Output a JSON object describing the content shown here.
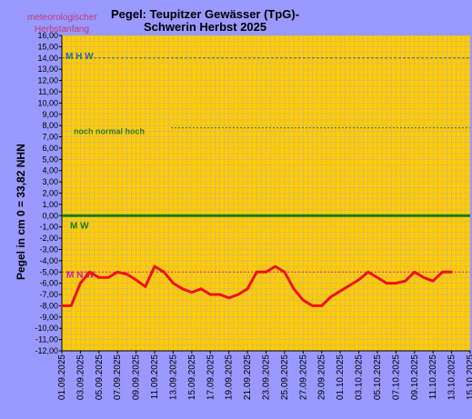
{
  "chart_data": {
    "type": "line",
    "title": [
      "Pegel: Teupitzer Gewässer (TpG)-",
      "Schwerin  Herbst 2025"
    ],
    "season_label": [
      "meteorologischer",
      "Herbstanfang"
    ],
    "ylabel": "Pegel in cm     0 = 33,82 NHN",
    "ylim": [
      -12,
      16
    ],
    "yticks": [
      "-12,00",
      "-11,00",
      "-10,00",
      "-9,00",
      "-8,00",
      "-7,00",
      "-6,00",
      "-5,00",
      "-4,00",
      "-3,00",
      "-2,00",
      "-1,00",
      "0,00",
      "1,00",
      "2,00",
      "3,00",
      "4,00",
      "5,00",
      "6,00",
      "7,00",
      "8,00",
      "9,00",
      "10,00",
      "11,00",
      "12,00",
      "13,00",
      "14,00",
      "15,00",
      "16,00"
    ],
    "xlim": [
      "01.09.2025",
      "15.10.2025"
    ],
    "xticks": [
      "01.09.2025",
      "03.09.2025",
      "05.09.2025",
      "07.09.2025",
      "09.09.2025",
      "11.09.2025",
      "13.09.2025",
      "15.09.2025",
      "17.09.2025",
      "19.09.2025",
      "21.09.2025",
      "23.09.2025",
      "25.09.2025",
      "27.09.2025",
      "29.09.2025",
      "01.10.2025",
      "03.10.2025",
      "05.10.2025",
      "07.10.2025",
      "09.10.2025",
      "11.10.2025",
      "13.10.2025",
      "15.10.2025"
    ],
    "grid": true,
    "reference_lines": [
      {
        "label": "M H W",
        "value": 14,
        "color": "#336699"
      },
      {
        "label": "noch  normal  hoch",
        "value": 7.8,
        "color": "#2e7d32"
      },
      {
        "label": "M W",
        "value": 0,
        "color": "#1a7a1a"
      },
      {
        "label": "M N W",
        "value": -5,
        "color": "#cc1f99"
      }
    ],
    "series": [
      {
        "color": "#ee1111",
        "x": [
          "01.09.2025",
          "02.09.2025",
          "03.09.2025",
          "04.09.2025",
          "05.09.2025",
          "06.09.2025",
          "07.09.2025",
          "08.09.2025",
          "09.09.2025",
          "10.09.2025",
          "11.09.2025",
          "12.09.2025",
          "13.09.2025",
          "14.09.2025",
          "15.09.2025",
          "16.09.2025",
          "17.09.2025",
          "18.09.2025",
          "19.09.2025",
          "20.09.2025",
          "21.09.2025",
          "22.09.2025",
          "23.09.2025",
          "24.09.2025",
          "25.09.2025",
          "26.09.2025",
          "27.09.2025",
          "28.09.2025",
          "29.09.2025",
          "30.09.2025",
          "01.10.2025",
          "02.10.2025",
          "03.10.2025",
          "04.10.2025",
          "05.10.2025",
          "06.10.2025",
          "07.10.2025",
          "08.10.2025",
          "09.10.2025",
          "10.10.2025",
          "11.10.2025",
          "12.10.2025",
          "13.10.2025"
        ],
        "values": [
          -8,
          -8,
          -6,
          -5,
          -5.5,
          -5.5,
          -5,
          -5.2,
          -5.7,
          -6.3,
          -4.5,
          -5,
          -6,
          -6.5,
          -6.8,
          -6.5,
          -7,
          -7,
          -7.3,
          -7,
          -6.5,
          -5,
          -5,
          -4.5,
          -5,
          -6.5,
          -7.5,
          -8,
          -8,
          -7.2,
          -6.7,
          -6.2,
          -5.7,
          -5,
          -5.5,
          -6,
          -6,
          -5.8,
          -5,
          -5.5,
          -5.8,
          -5,
          -5
        ]
      }
    ],
    "colors": {
      "plot_bg": "#ffcc00",
      "page_bg": "#9999ff",
      "grid": "#9999ff"
    }
  }
}
